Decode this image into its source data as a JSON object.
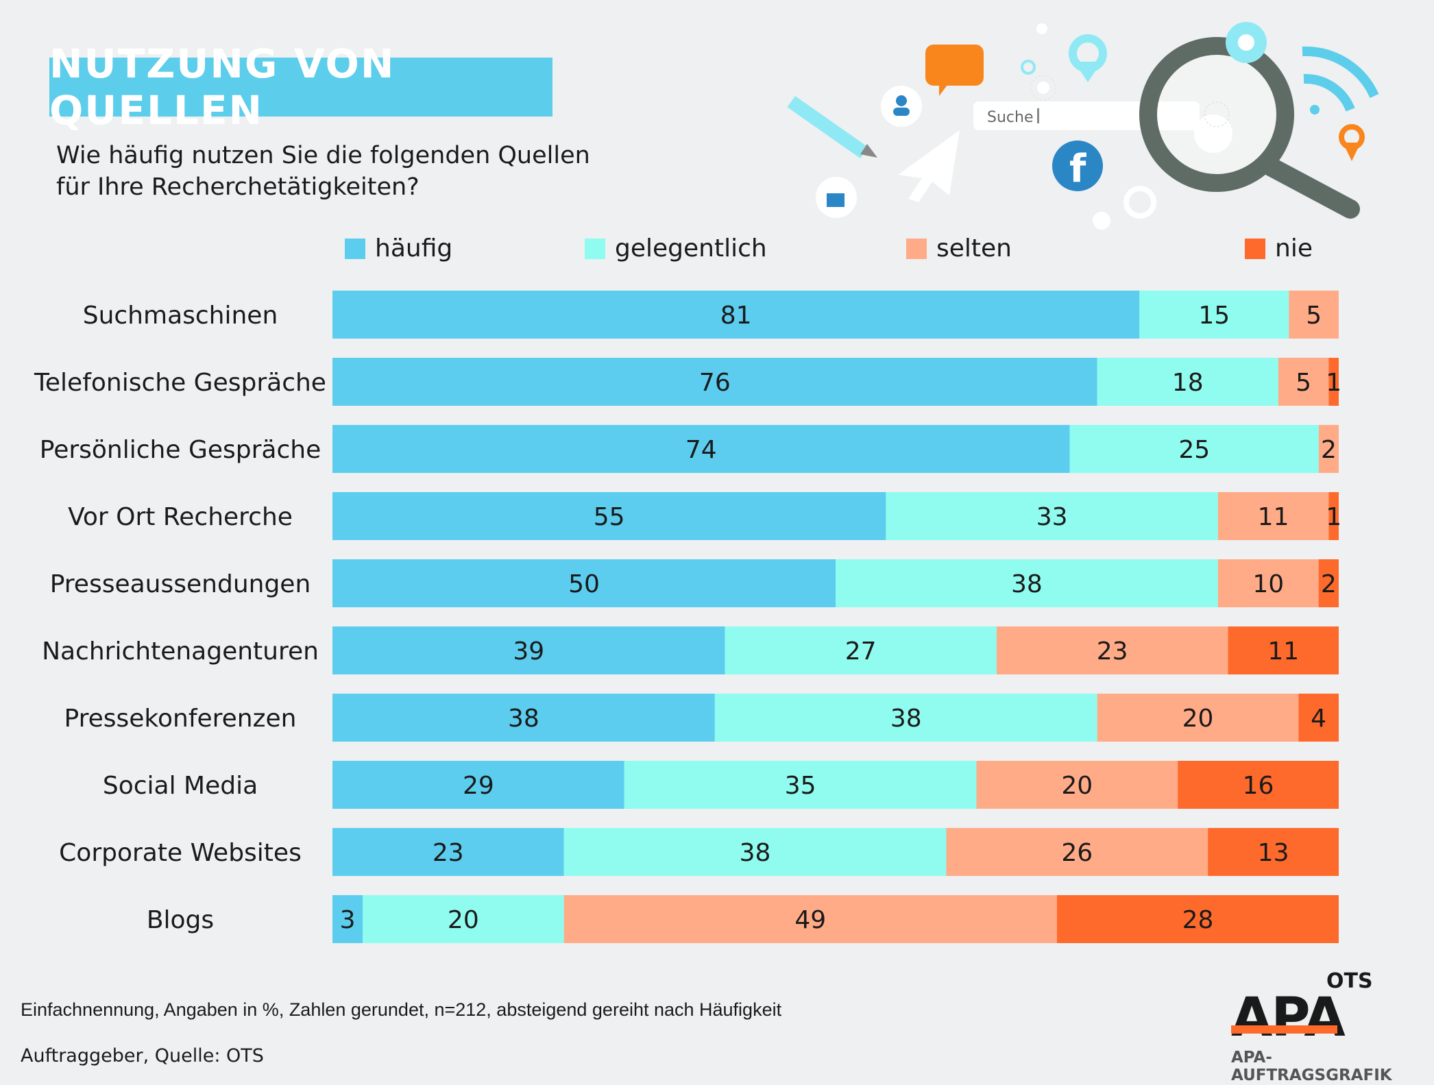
{
  "header": {
    "title": "NUTZUNG VON QUELLEN",
    "subtitle": "Wie häufig nutzen Sie die folgenden Quellen\nfür Ihre Recherchetätigkeiten?"
  },
  "decoration": {
    "search_placeholder": "Suche"
  },
  "chart_data": {
    "type": "bar",
    "orientation": "horizontal",
    "stacked": true,
    "categories": [
      "Suchmaschinen",
      "Telefonische Gespräche",
      "Persönliche Gespräche",
      "Vor Ort Recherche",
      "Presseaussendungen",
      "Nachrichtenagenturen",
      "Pressekonferenzen",
      "Social Media",
      "Corporate Websites",
      "Blogs"
    ],
    "series": [
      {
        "name": "häufig",
        "color": "#5ccdee",
        "values": [
          81,
          76,
          74,
          55,
          50,
          39,
          38,
          29,
          23,
          3
        ]
      },
      {
        "name": "gelegentlich",
        "color": "#8ffcef",
        "values": [
          15,
          18,
          25,
          33,
          38,
          27,
          38,
          35,
          38,
          20
        ]
      },
      {
        "name": "selten",
        "color": "#ffab87",
        "values": [
          5,
          5,
          2,
          11,
          10,
          23,
          20,
          20,
          26,
          49
        ]
      },
      {
        "name": "nie",
        "color": "#fd6a2c",
        "values": [
          0,
          1,
          0,
          1,
          2,
          11,
          4,
          16,
          13,
          28
        ]
      }
    ],
    "legend_position": "top",
    "grid": false
  },
  "footer": {
    "note": "Einfachnennung, Angaben in %, Zahlen gerundet, n=212, absteigend gereiht nach Häufigkeit",
    "source": "Auftraggeber, Quelle: OTS"
  },
  "logo": {
    "ots": "OTS",
    "apa": "APA",
    "subline": "APA-AUFTRAGSGRAFIK"
  }
}
